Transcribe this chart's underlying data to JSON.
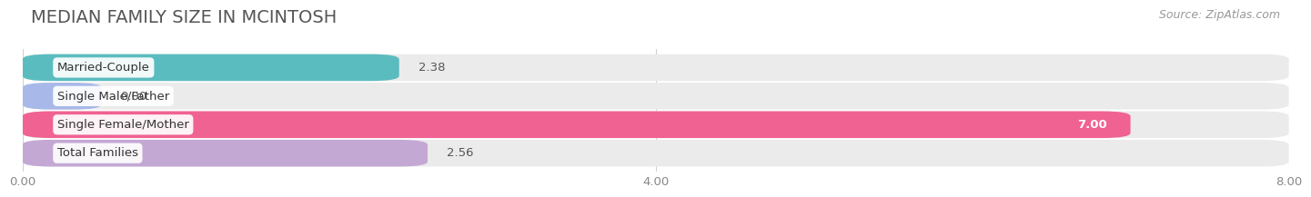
{
  "title": "MEDIAN FAMILY SIZE IN MCINTOSH",
  "source": "Source: ZipAtlas.com",
  "categories": [
    "Married-Couple",
    "Single Male/Father",
    "Single Female/Mother",
    "Total Families"
  ],
  "values": [
    2.38,
    0.0,
    7.0,
    2.56
  ],
  "bar_colors": [
    "#5bbcbf",
    "#a8b8e8",
    "#f06292",
    "#c4a8d4"
  ],
  "bar_bg_color": "#ebebeb",
  "xlim": [
    0,
    8.0
  ],
  "xticks": [
    0.0,
    4.0,
    8.0
  ],
  "xtick_labels": [
    "0.00",
    "4.00",
    "8.00"
  ],
  "title_fontsize": 14,
  "source_fontsize": 9,
  "tick_fontsize": 9.5,
  "bar_label_fontsize": 9.5,
  "category_fontsize": 9.5,
  "bar_height": 0.58,
  "bg_color": "#ffffff",
  "value_inside_color": "#ffffff",
  "value_outside_color": "#555555",
  "inside_threshold": 7.0
}
